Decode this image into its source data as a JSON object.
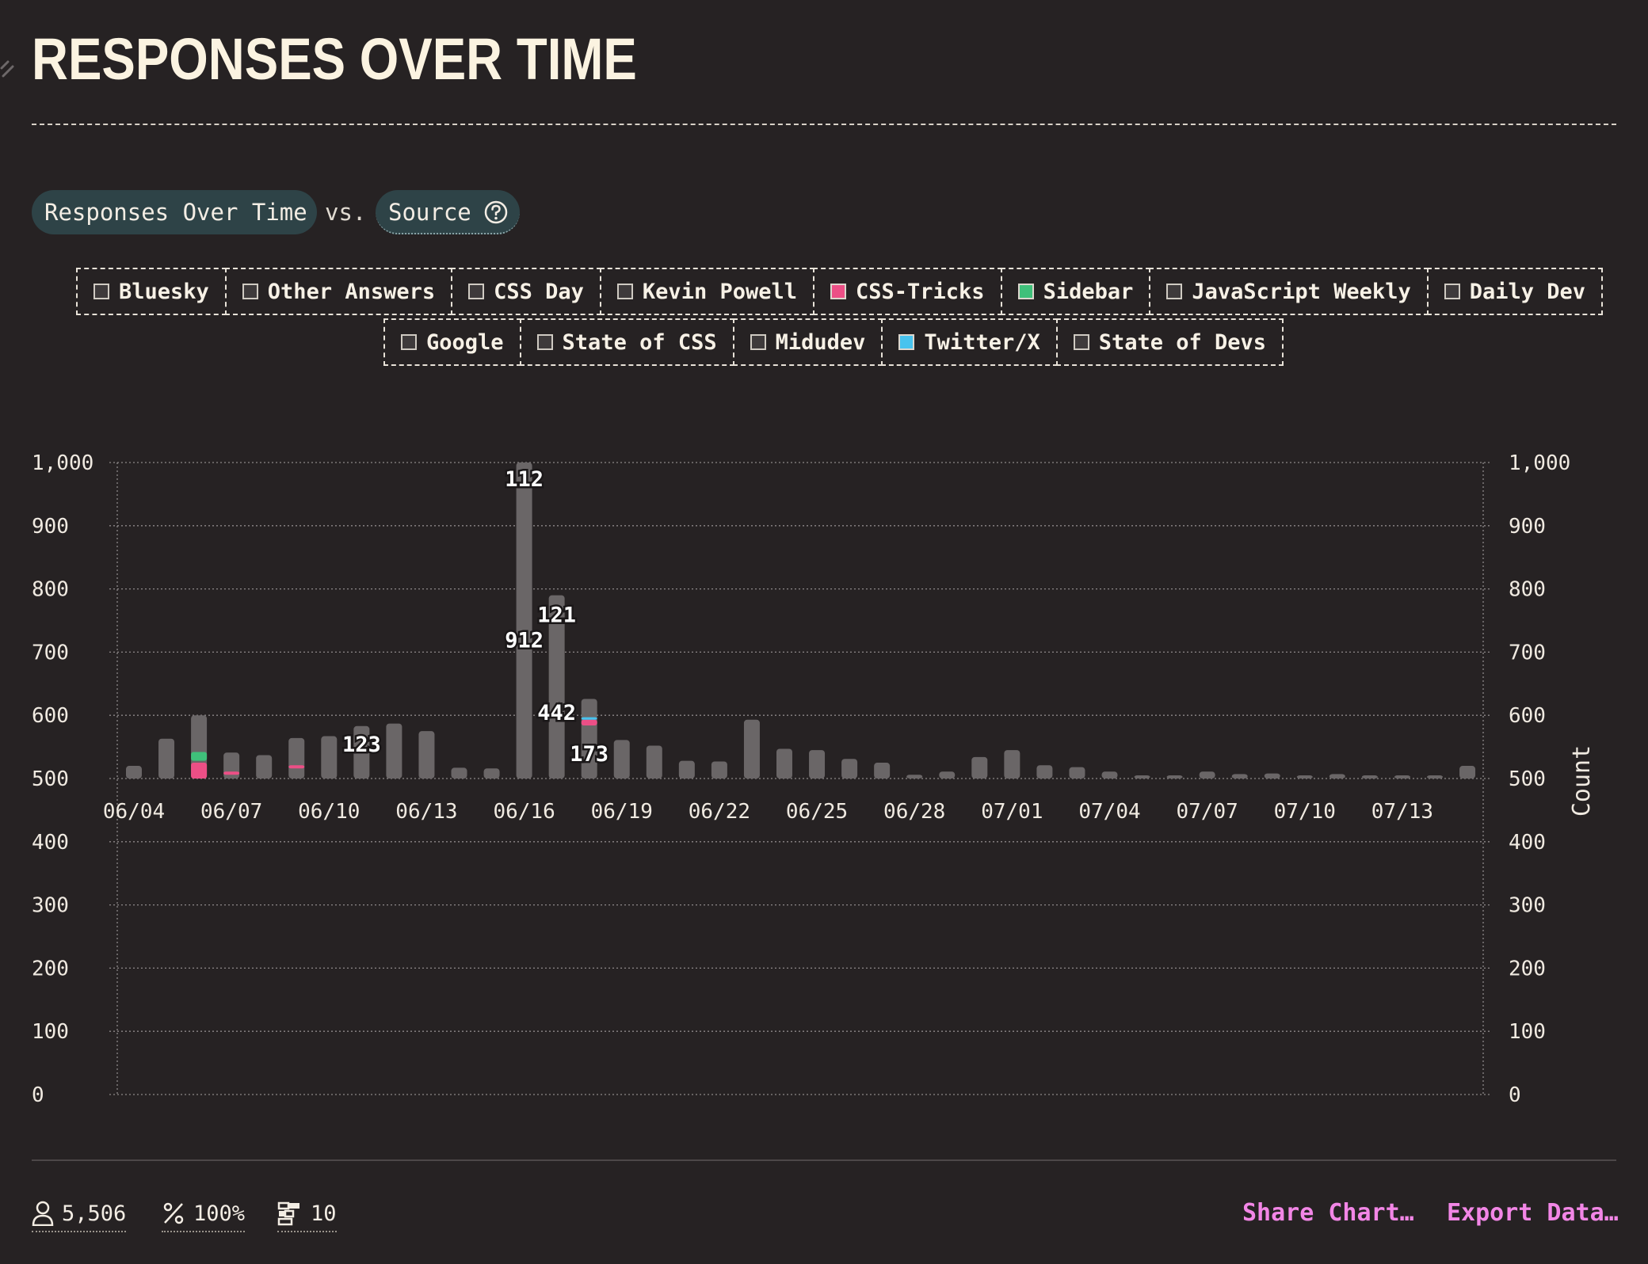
{
  "header": {
    "title": "RESPONSES OVER TIME"
  },
  "comparison": {
    "variable_label": "Responses Over Time",
    "vs_label": "vs.",
    "source_label": "Source"
  },
  "legend": {
    "row1": [
      {
        "label": "Bluesky",
        "color": null
      },
      {
        "label": "Other Answers",
        "color": null
      },
      {
        "label": "CSS Day",
        "color": null
      },
      {
        "label": "Kevin Powell",
        "color": null
      },
      {
        "label": "CSS-Tricks",
        "color": "#ec4f86"
      },
      {
        "label": "Sidebar",
        "color": "#3fc07a"
      },
      {
        "label": "JavaScript Weekly",
        "color": null
      },
      {
        "label": "Daily Dev",
        "color": null
      }
    ],
    "row2": [
      {
        "label": "Google",
        "color": null
      },
      {
        "label": "State of CSS",
        "color": null
      },
      {
        "label": "Midudev",
        "color": null
      },
      {
        "label": "Twitter/X",
        "color": "#47c3ee"
      },
      {
        "label": "State of Devs",
        "color": null
      }
    ]
  },
  "chart_data": {
    "type": "bar",
    "ylabel": "Count",
    "ylim": [
      0,
      1000
    ],
    "yticks": [
      "0",
      "100",
      "200",
      "300",
      "400",
      "500",
      "600",
      "700",
      "800",
      "900",
      "1,000"
    ],
    "xticks": [
      "06/04",
      "06/07",
      "06/10",
      "06/13",
      "06/16",
      "06/19",
      "06/22",
      "06/25",
      "06/28",
      "07/01",
      "07/04",
      "07/07",
      "07/10",
      "07/13"
    ],
    "bar_color": "#6a6667",
    "categories": [
      "06/04",
      "06/05",
      "06/06",
      "06/07",
      "06/08",
      "06/09",
      "06/10",
      "06/11",
      "06/12",
      "06/13",
      "06/14",
      "06/15",
      "06/16",
      "06/17",
      "06/18",
      "06/19",
      "06/20",
      "06/21",
      "06/22",
      "06/23",
      "06/24",
      "06/25",
      "06/26",
      "06/27",
      "06/28",
      "06/29",
      "06/30",
      "07/01",
      "07/02",
      "07/03",
      "07/04",
      "07/05",
      "07/06",
      "07/07",
      "07/08",
      "07/09",
      "07/10",
      "07/11",
      "07/12",
      "07/13",
      "07/14",
      "07/15"
    ],
    "values": [
      520,
      563,
      600,
      541,
      537,
      564,
      567,
      583,
      587,
      575,
      517,
      516,
      1000,
      790,
      626,
      561,
      552,
      528,
      527,
      593,
      547,
      545,
      531,
      525,
      506,
      511,
      534,
      545,
      521,
      518,
      511,
      505,
      505,
      511,
      507,
      508,
      505,
      507,
      500,
      500,
      505,
      520
    ],
    "highlights": [
      {
        "category": "06/06",
        "series": "CSS-Tricks",
        "from": 500,
        "to": 525,
        "color": "#ec4f86"
      },
      {
        "category": "06/06",
        "series": "Sidebar",
        "from": 528,
        "to": 542,
        "color": "#3fc07a"
      },
      {
        "category": "06/07",
        "series": "CSS-Tricks",
        "from": 506,
        "to": 511,
        "color": "#ec4f86"
      },
      {
        "category": "06/09",
        "series": "CSS-Tricks",
        "from": 516,
        "to": 521,
        "color": "#ec4f86"
      },
      {
        "category": "06/18",
        "series": "CSS-Tricks",
        "from": 584,
        "to": 593,
        "color": "#ec4f86"
      },
      {
        "category": "06/18",
        "series": "Twitter/X",
        "from": 593,
        "to": 597,
        "color": "#47c3ee"
      }
    ],
    "data_labels": [
      {
        "text": "112",
        "category": "06/16",
        "y": 975
      },
      {
        "text": "912",
        "category": "06/16",
        "y": 720
      },
      {
        "text": "121",
        "category": "06/17",
        "y": 760
      },
      {
        "text": "123",
        "category": "06/11",
        "y": 555
      },
      {
        "text": "442",
        "category": "06/17",
        "y": 605
      },
      {
        "text": "173",
        "category": "06/18",
        "y": 540
      }
    ]
  },
  "footer": {
    "respondents": "5,506",
    "percent": "100%",
    "questions": "10",
    "share_label": "Share Chart…",
    "export_label": "Export Data…"
  }
}
